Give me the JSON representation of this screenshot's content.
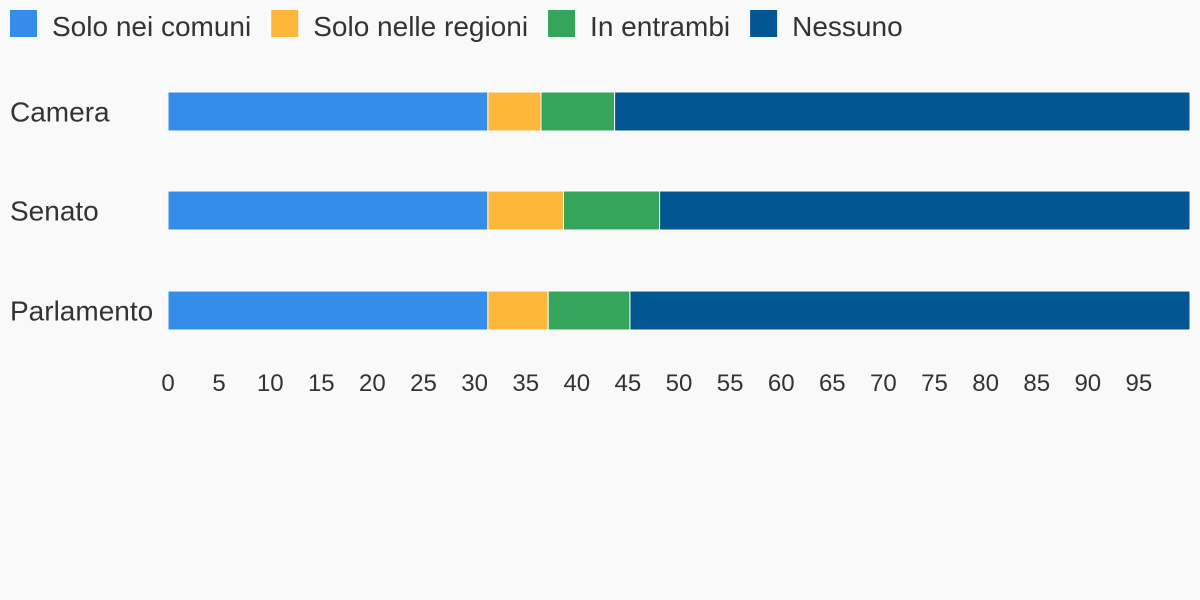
{
  "chart_data": {
    "type": "bar",
    "orientation": "horizontal",
    "stacked": true,
    "title": "",
    "xlabel": "",
    "ylabel": "",
    "categories": [
      "Camera",
      "Senato",
      "Parlamento"
    ],
    "series": [
      {
        "name": "Solo nei comuni",
        "color": "#348de8",
        "values": [
          31.3,
          31.3,
          31.3
        ]
      },
      {
        "name": "Solo nelle regioni",
        "color": "#fdb73b",
        "values": [
          5.2,
          7.4,
          5.9
        ]
      },
      {
        "name": "In entrambi",
        "color": "#34a55b",
        "values": [
          7.2,
          9.4,
          8.0
        ]
      },
      {
        "name": "Nessuno",
        "color": "#025692",
        "values": [
          56.3,
          51.9,
          54.8
        ]
      }
    ],
    "xlim": [
      0,
      100
    ],
    "xticks": [
      0,
      5,
      10,
      15,
      20,
      25,
      30,
      35,
      40,
      45,
      50,
      55,
      60,
      65,
      70,
      75,
      80,
      85,
      90,
      95
    ],
    "grid": false,
    "legend": "top-left"
  }
}
